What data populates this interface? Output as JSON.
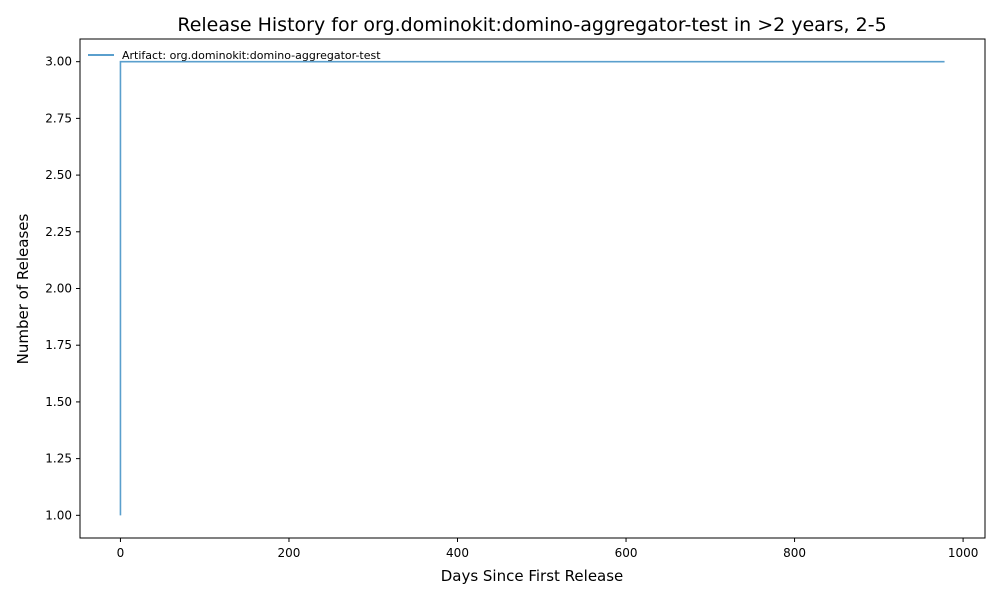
{
  "chart_data": {
    "type": "line",
    "title": "Release History for org.dominokit:domino-aggregator-test in >2 years, 2-5",
    "xlabel": "Days Since First Release",
    "ylabel": "Number of Releases",
    "xlim": [
      -48,
      1026
    ],
    "ylim": [
      0.9,
      3.1
    ],
    "x_ticks": [
      0,
      200,
      400,
      600,
      800,
      1000
    ],
    "x_tick_labels": [
      "0",
      "200",
      "400",
      "600",
      "800",
      "1000"
    ],
    "y_ticks": [
      1.0,
      1.25,
      1.5,
      1.75,
      2.0,
      2.25,
      2.5,
      2.75,
      3.0
    ],
    "y_tick_labels": [
      "1.00",
      "1.25",
      "1.50",
      "1.75",
      "2.00",
      "2.25",
      "2.50",
      "2.75",
      "3.00"
    ],
    "grid": false,
    "legend_position": "top-left",
    "series": [
      {
        "name": "Artifact: org.dominokit:domino-aggregator-test",
        "color": "#5a9fcd",
        "step": "post",
        "x": [
          0,
          0,
          978
        ],
        "y": [
          1,
          3,
          3
        ]
      }
    ]
  }
}
